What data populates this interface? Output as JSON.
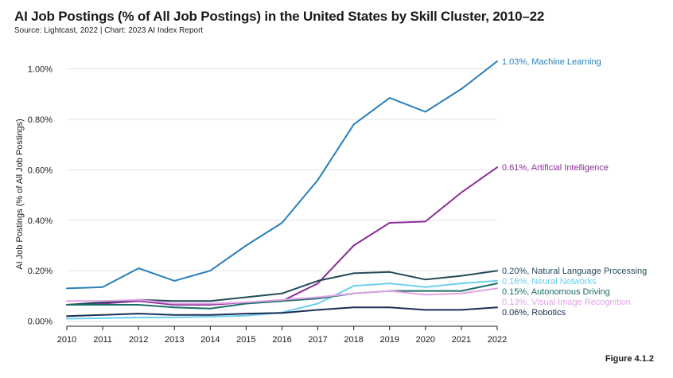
{
  "header": {
    "title": "AI Job Postings (% of All Job Postings) in the United States by Skill Cluster, 2010–22",
    "source": "Source: Lightcast, 2022 | Chart: 2023 AI Index Report",
    "figure": "Figure 4.1.2"
  },
  "chart_data": {
    "type": "line",
    "title": "AI Job Postings (% of All Job Postings) in the United States by Skill Cluster, 2010–22",
    "xlabel": "",
    "ylabel": "AI Job Postings (% of All Job Postings)",
    "x": [
      2010,
      2011,
      2012,
      2013,
      2014,
      2015,
      2016,
      2017,
      2018,
      2019,
      2020,
      2021,
      2022
    ],
    "xticks": [
      "2010",
      "2011",
      "2012",
      "2013",
      "2014",
      "2015",
      "2016",
      "2017",
      "2018",
      "2019",
      "2020",
      "2021",
      "2022"
    ],
    "yticks": [
      "0.00%",
      "0.20%",
      "0.40%",
      "0.60%",
      "0.80%",
      "1.00%"
    ],
    "ytick_values": [
      0,
      0.2,
      0.4,
      0.6,
      0.8,
      1.0
    ],
    "ylim": [
      -0.02,
      1.09
    ],
    "grid": "horizontal",
    "legend": "end-of-line labels",
    "series": [
      {
        "name": "Machine Learning",
        "label": "1.03%, Machine Learning",
        "color": "#2a7fb8",
        "values": [
          0.13,
          0.135,
          0.21,
          0.16,
          0.2,
          0.3,
          0.39,
          0.56,
          0.78,
          0.885,
          0.83,
          0.92,
          1.03
        ]
      },
      {
        "name": "Artificial Intelligence",
        "label": "0.61%, Artificial Intelligence",
        "color": "#8b2f97",
        "values": [
          0.065,
          0.07,
          0.08,
          0.065,
          0.065,
          0.075,
          0.08,
          0.15,
          0.3,
          0.39,
          0.395,
          0.51,
          0.61
        ]
      },
      {
        "name": "Natural Language Processing",
        "label": "0.20%, Natural Language Processing",
        "color": "#234a59",
        "values": [
          0.065,
          0.075,
          0.085,
          0.08,
          0.08,
          0.095,
          0.11,
          0.16,
          0.19,
          0.195,
          0.165,
          0.18,
          0.2
        ]
      },
      {
        "name": "Neural Networks",
        "label": "0.16%, Neural Networks",
        "color": "#6ecfee",
        "values": [
          0.01,
          0.012,
          0.015,
          0.015,
          0.018,
          0.022,
          0.035,
          0.07,
          0.14,
          0.15,
          0.135,
          0.15,
          0.16
        ]
      },
      {
        "name": "Autonomous Driving",
        "label": "0.15%, Autonomous Driving",
        "color": "#1e6d6a",
        "values": [
          0.065,
          0.065,
          0.065,
          0.055,
          0.05,
          0.07,
          0.08,
          0.09,
          0.11,
          0.12,
          0.12,
          0.12,
          0.15
        ]
      },
      {
        "name": "Visual Image Recognition",
        "label": "0.13%, Visual Image Recognition",
        "color": "#e3a3e6",
        "values": [
          0.08,
          0.08,
          0.085,
          0.07,
          0.07,
          0.075,
          0.085,
          0.095,
          0.11,
          0.12,
          0.105,
          0.11,
          0.13
        ]
      },
      {
        "name": "Robotics",
        "label": "0.06%, Robotics",
        "color": "#1c2e55",
        "values": [
          0.02,
          0.025,
          0.03,
          0.025,
          0.025,
          0.03,
          0.033,
          0.045,
          0.055,
          0.055,
          0.045,
          0.045,
          0.055
        ]
      }
    ]
  }
}
